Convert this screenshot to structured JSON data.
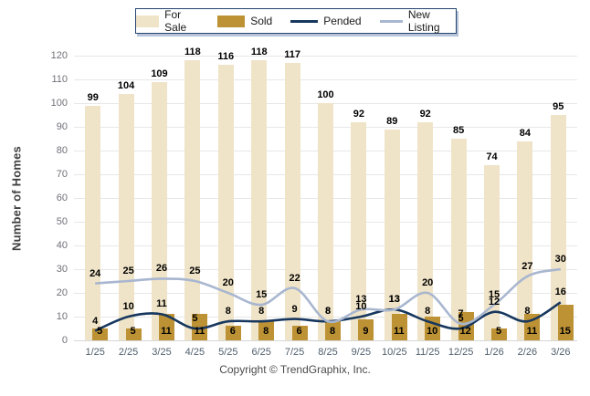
{
  "chart_data": {
    "type": "bar+line combo",
    "title": "",
    "ylabel": "Number of Homes",
    "xlabel": "",
    "ylim": [
      0,
      120
    ],
    "ytick_step": 10,
    "grid": true,
    "legend_position": "top",
    "categories": [
      "1/25",
      "2/25",
      "3/25",
      "4/25",
      "5/25",
      "6/25",
      "7/25",
      "8/25",
      "9/25",
      "10/25",
      "11/25",
      "12/25",
      "1/26",
      "2/26",
      "3/26"
    ],
    "series": [
      {
        "name": "For Sale",
        "type": "bar",
        "color": "#F0E4C8",
        "values": [
          99,
          104,
          109,
          118,
          116,
          118,
          117,
          100,
          92,
          89,
          92,
          85,
          74,
          84,
          95
        ]
      },
      {
        "name": "Sold",
        "type": "bar",
        "color": "#BD9235",
        "values": [
          5,
          5,
          11,
          11,
          6,
          8,
          6,
          8,
          9,
          11,
          10,
          12,
          5,
          11,
          15
        ]
      },
      {
        "name": "Pended",
        "type": "line",
        "color": "#17375E",
        "values": [
          4,
          10,
          11,
          5,
          8,
          8,
          9,
          8,
          10,
          13,
          8,
          5,
          12,
          8,
          16
        ]
      },
      {
        "name": "New Listing",
        "type": "line",
        "color": "#A8B6CF",
        "values": [
          24,
          25,
          26,
          25,
          20,
          15,
          22,
          8,
          13,
          13,
          20,
          7,
          15,
          27,
          30
        ]
      }
    ]
  },
  "footer": {
    "copyright": "Copyright © TrendGraphix, Inc."
  }
}
